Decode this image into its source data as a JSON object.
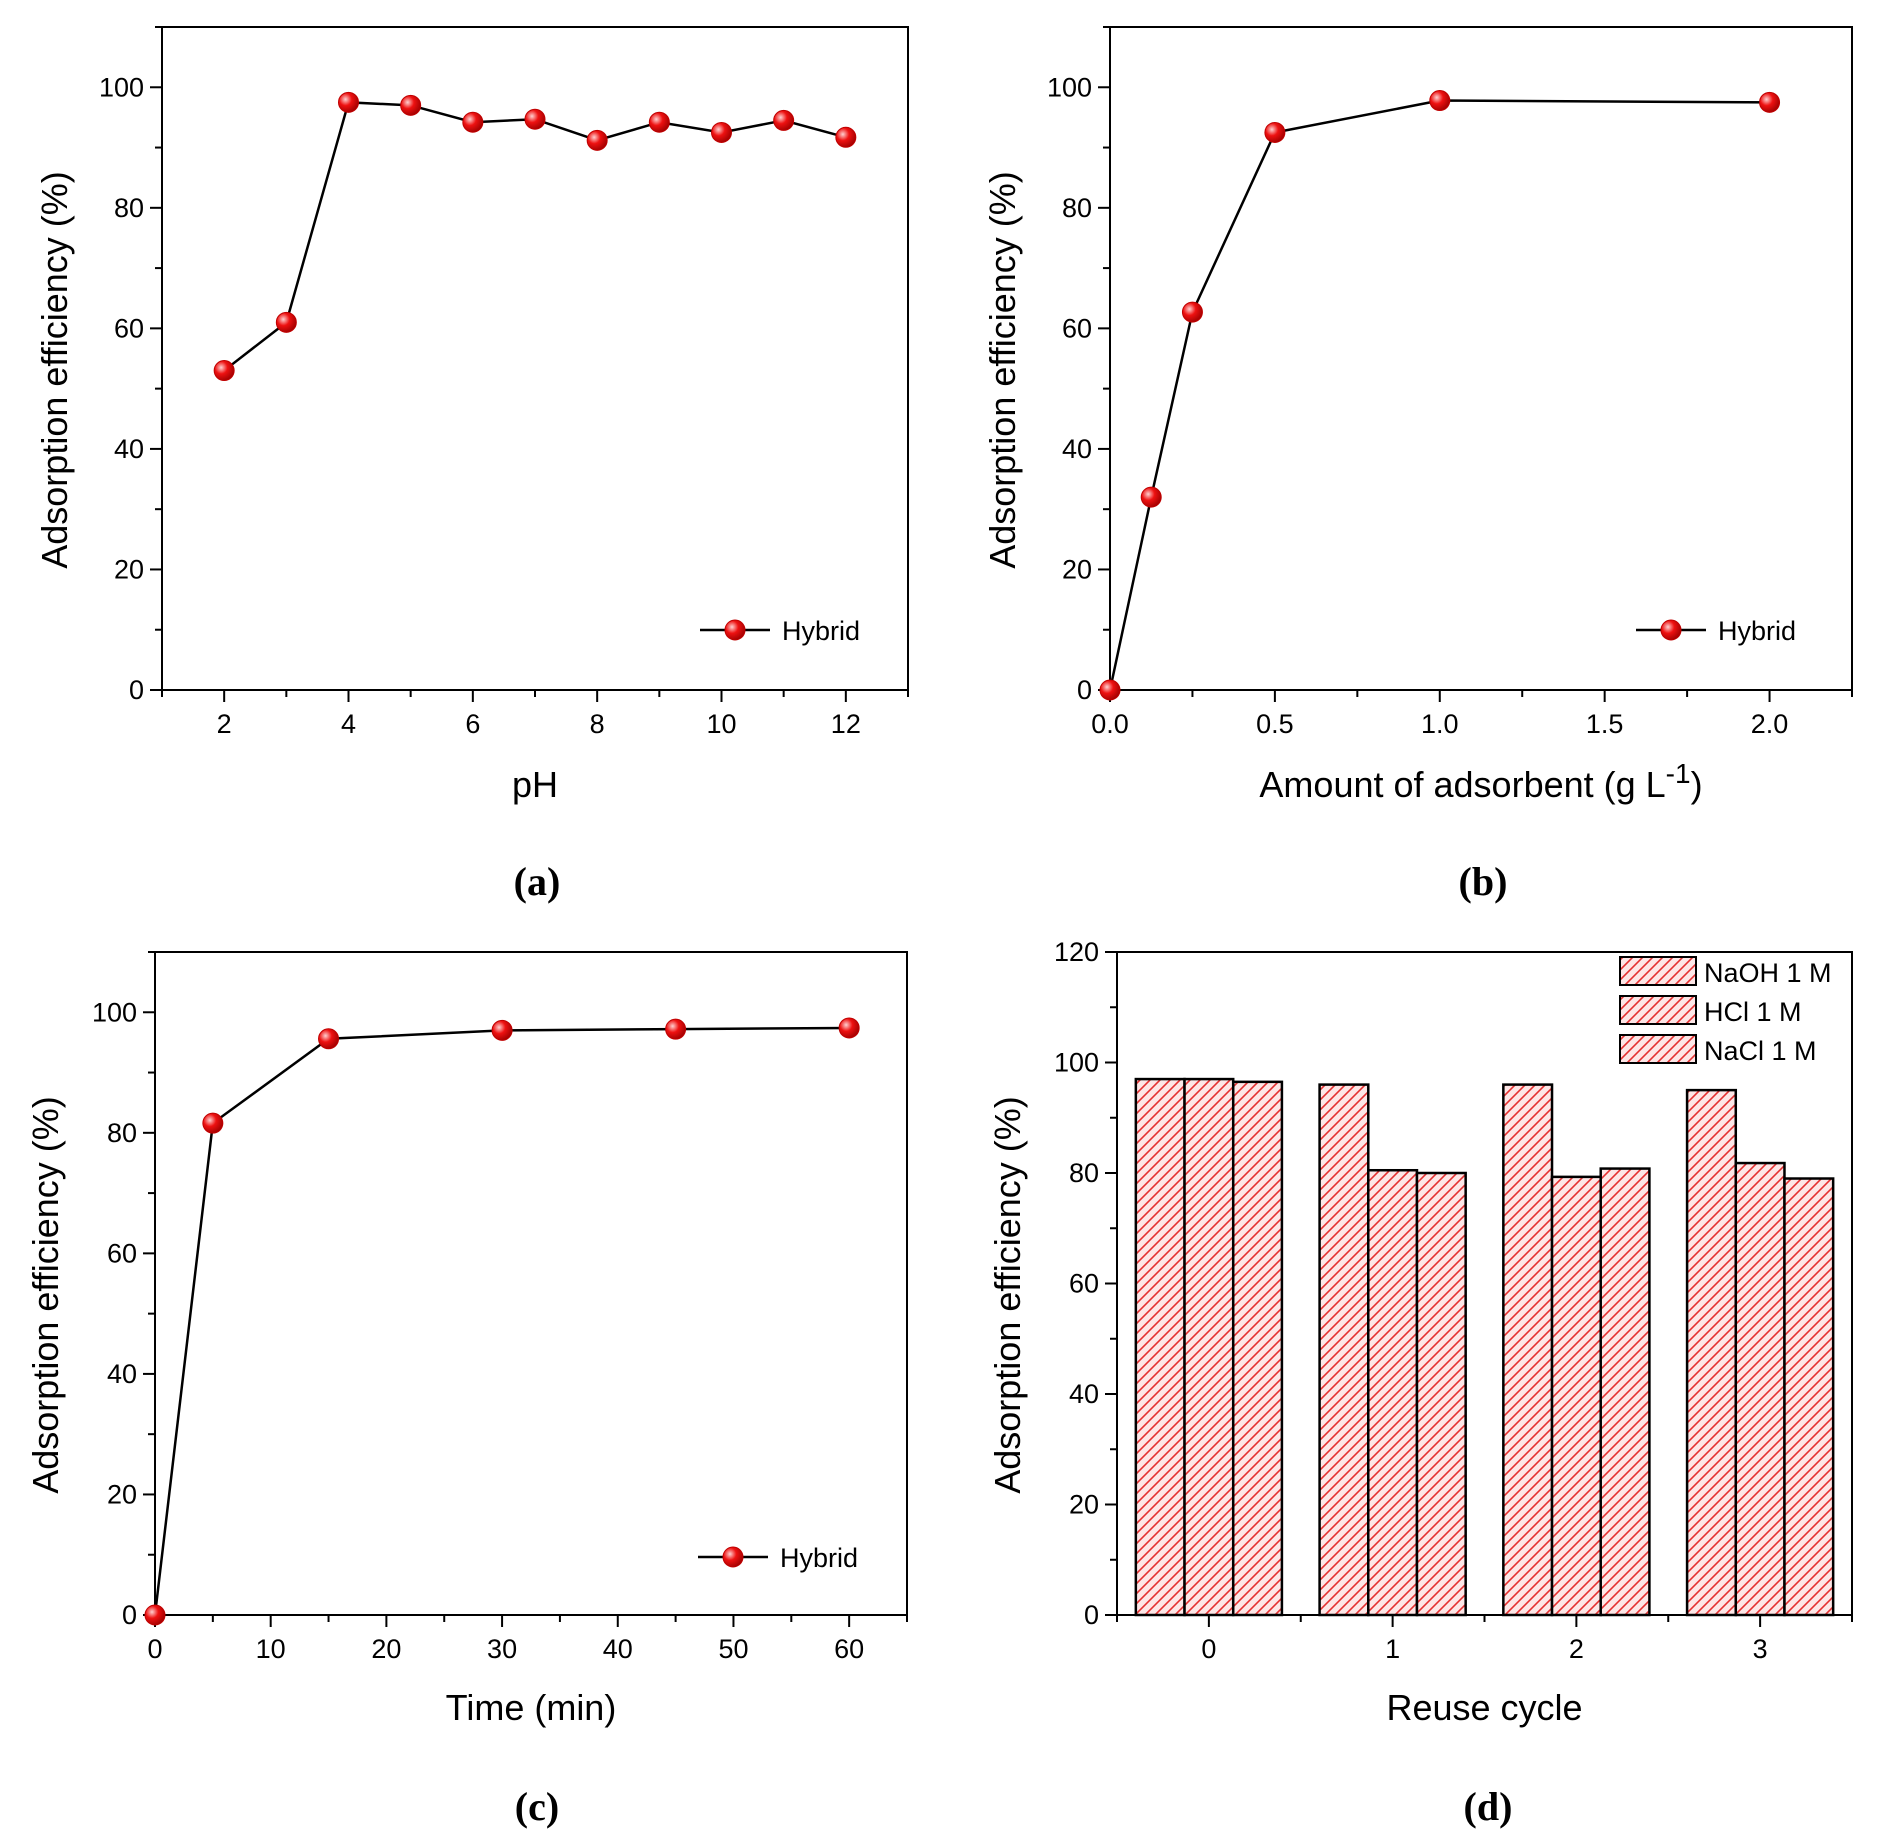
{
  "colors": {
    "marker": "#ee1111",
    "marker_highlight": "#ffd0d0",
    "bar_hatch": "#e53030",
    "bar_fill": "#fde6e6",
    "axis": "#000000"
  },
  "chart_data": [
    {
      "id": "a",
      "type": "line",
      "caption": "(a)",
      "title": "",
      "xlabel": "pH",
      "ylabel": "Adsorption efficiency (%)",
      "xlim": [
        1,
        13
      ],
      "ylim": [
        0,
        110
      ],
      "xticks": [
        2,
        4,
        6,
        8,
        10,
        12
      ],
      "xminor": [
        1,
        3,
        5,
        7,
        9,
        11,
        13
      ],
      "yticks": [
        0,
        20,
        40,
        60,
        80,
        100
      ],
      "yminor": [
        10,
        30,
        50,
        70,
        90,
        110
      ],
      "legend": {
        "position": "bottom-right",
        "entries": [
          "Hybrid"
        ]
      },
      "series": [
        {
          "name": "Hybrid",
          "x": [
            2,
            3,
            4,
            5,
            6,
            7,
            8,
            9,
            10,
            11,
            12
          ],
          "y": [
            53,
            61,
            97.5,
            97,
            94.2,
            94.7,
            91.2,
            94.2,
            92.5,
            94.5,
            91.7
          ]
        }
      ]
    },
    {
      "id": "b",
      "type": "line",
      "caption": "(b)",
      "title": "",
      "xlabel": "Amount of adsorbent (g L",
      "xlabel_sup": "-1",
      "xlabel_end": ")",
      "ylabel": "Adsorption efficiency (%)",
      "xlim": [
        0,
        2.25
      ],
      "ylim": [
        0,
        110
      ],
      "xticks": [
        0.0,
        0.5,
        1.0,
        1.5,
        2.0
      ],
      "xtick_labels": [
        "0.0",
        "0.5",
        "1.0",
        "1.5",
        "2.0"
      ],
      "xminor": [
        0.25,
        0.75,
        1.25,
        1.75,
        2.25
      ],
      "yticks": [
        0,
        20,
        40,
        60,
        80,
        100
      ],
      "yminor": [
        10,
        30,
        50,
        70,
        90,
        110
      ],
      "legend": {
        "position": "bottom-right",
        "entries": [
          "Hybrid"
        ]
      },
      "series": [
        {
          "name": "Hybrid",
          "x": [
            0,
            0.125,
            0.25,
            0.5,
            1.0,
            2.0
          ],
          "y": [
            0,
            32,
            62.7,
            92.5,
            97.8,
            97.5
          ]
        }
      ]
    },
    {
      "id": "c",
      "type": "line",
      "caption": "(c)",
      "title": "",
      "xlabel": "Time (min)",
      "ylabel": "Adsorption efficiency (%)",
      "xlim": [
        0,
        65
      ],
      "ylim": [
        0,
        110
      ],
      "xticks": [
        0,
        10,
        20,
        30,
        40,
        50,
        60
      ],
      "xminor": [
        5,
        15,
        25,
        35,
        45,
        55,
        65
      ],
      "yticks": [
        0,
        20,
        40,
        60,
        80,
        100
      ],
      "yminor": [
        10,
        30,
        50,
        70,
        90,
        110
      ],
      "legend": {
        "position": "bottom-right",
        "entries": [
          "Hybrid"
        ]
      },
      "series": [
        {
          "name": "Hybrid",
          "x": [
            0,
            5,
            15,
            30,
            45,
            60
          ],
          "y": [
            0,
            81.6,
            95.6,
            97,
            97.2,
            97.4
          ]
        }
      ]
    },
    {
      "id": "d",
      "type": "bar",
      "caption": "(d)",
      "title": "",
      "xlabel": "Reuse cycle",
      "ylabel": "Adsorption efficiency (%)",
      "xlim": [
        -0.5,
        3.5
      ],
      "ylim": [
        0,
        120
      ],
      "categories": [
        "0",
        "1",
        "2",
        "3"
      ],
      "yticks": [
        0,
        20,
        40,
        60,
        80,
        100,
        120
      ],
      "yminor": [
        10,
        30,
        50,
        70,
        90,
        110
      ],
      "legend": {
        "position": "top-right",
        "entries": [
          "NaOH 1 M",
          "HCl 1 M",
          "NaCl 1 M"
        ]
      },
      "series": [
        {
          "name": "NaOH 1 M",
          "values": [
            97,
            96,
            96,
            95
          ]
        },
        {
          "name": "HCl 1 M",
          "values": [
            97,
            80.5,
            79.3,
            81.8
          ]
        },
        {
          "name": "NaCl 1 M",
          "values": [
            96.5,
            80,
            80.8,
            79
          ]
        }
      ]
    }
  ]
}
